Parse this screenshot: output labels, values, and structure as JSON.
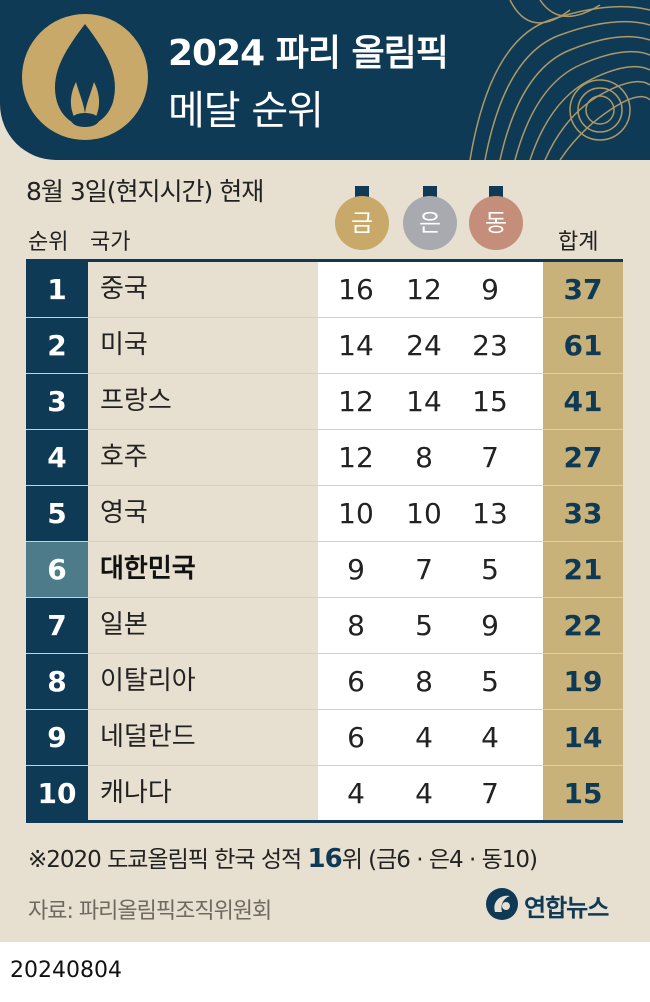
{
  "header": {
    "title": "2024 파리 올림픽",
    "subtitle": "메달 순위"
  },
  "as_of": "8월 3일(현지시간) 현재",
  "columns": {
    "rank": "순위",
    "country": "국가",
    "gold": "금",
    "silver": "은",
    "bronze": "동",
    "total": "합계"
  },
  "rows": [
    {
      "rank": "1",
      "country": "중국",
      "gold": "16",
      "silver": "12",
      "bronze": "9",
      "total": "37"
    },
    {
      "rank": "2",
      "country": "미국",
      "gold": "14",
      "silver": "24",
      "bronze": "23",
      "total": "61"
    },
    {
      "rank": "3",
      "country": "프랑스",
      "gold": "12",
      "silver": "14",
      "bronze": "15",
      "total": "41"
    },
    {
      "rank": "4",
      "country": "호주",
      "gold": "12",
      "silver": "8",
      "bronze": "7",
      "total": "27"
    },
    {
      "rank": "5",
      "country": "영국",
      "gold": "10",
      "silver": "10",
      "bronze": "13",
      "total": "33"
    },
    {
      "rank": "6",
      "country": "대한민국",
      "gold": "9",
      "silver": "7",
      "bronze": "5",
      "total": "21",
      "highlight": true
    },
    {
      "rank": "7",
      "country": "일본",
      "gold": "8",
      "silver": "5",
      "bronze": "9",
      "total": "22"
    },
    {
      "rank": "8",
      "country": "이탈리아",
      "gold": "6",
      "silver": "8",
      "bronze": "5",
      "total": "19"
    },
    {
      "rank": "9",
      "country": "네덜란드",
      "gold": "6",
      "silver": "4",
      "bronze": "4",
      "total": "14"
    },
    {
      "rank": "10",
      "country": "캐나다",
      "gold": "4",
      "silver": "4",
      "bronze": "7",
      "total": "15"
    }
  ],
  "note": {
    "prefix": "※2020 도쿄올림픽 한국 성적 ",
    "rank": "16",
    "suffix": "위 (금6 · 은4 · 동10)"
  },
  "source": "자료: 파리올림픽조직위원회",
  "brand": "연합뉴스",
  "date_stamp": "20240804",
  "colors": {
    "navy": "#0f3a55",
    "gold": "#c9a96a",
    "silver": "#a8aab0",
    "bronze": "#c48e7a",
    "beige": "#e7dfcf",
    "highlight_rank": "#4e7b8a"
  },
  "icons": {
    "logo": "paris-2024-flame-logo-icon",
    "brand": "yonhap-logo-icon"
  }
}
